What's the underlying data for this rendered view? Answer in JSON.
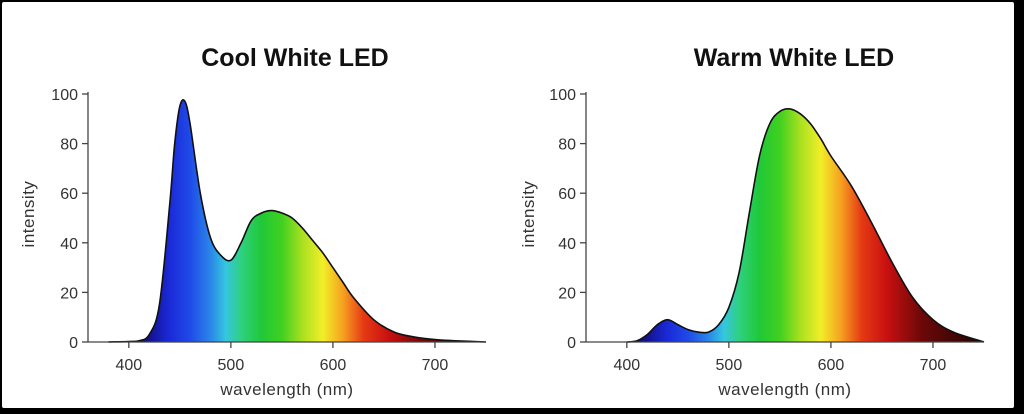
{
  "chart_data": [
    {
      "type": "area",
      "title": "Cool White LED",
      "xlabel": "wavelength (nm)",
      "ylabel": "intensity",
      "xlim": [
        360,
        750
      ],
      "ylim": [
        0,
        100
      ],
      "xticks": [
        "400",
        "500",
        "600",
        "700"
      ],
      "yticks": [
        "0",
        "20",
        "40",
        "60",
        "80",
        "100"
      ],
      "grid": false,
      "fill": "visible spectrum gradient",
      "x": [
        380,
        400,
        410,
        420,
        430,
        440,
        445,
        450,
        455,
        460,
        470,
        480,
        490,
        500,
        510,
        520,
        530,
        540,
        550,
        560,
        570,
        580,
        590,
        600,
        610,
        620,
        640,
        660,
        680,
        700,
        720,
        750
      ],
      "y": [
        0,
        0.2,
        0.5,
        3,
        15,
        55,
        80,
        95,
        97,
        88,
        60,
        42,
        35,
        33,
        40,
        49,
        52,
        53,
        52,
        50,
        46,
        41,
        36,
        30,
        24,
        18,
        9,
        4,
        2,
        1,
        0.5,
        0
      ]
    },
    {
      "type": "area",
      "title": "Warm White LED",
      "xlabel": "wavelength (nm)",
      "ylabel": "intensity",
      "xlim": [
        360,
        750
      ],
      "ylim": [
        0,
        100
      ],
      "xticks": [
        "400",
        "500",
        "600",
        "700"
      ],
      "yticks": [
        "0",
        "20",
        "40",
        "60",
        "80",
        "100"
      ],
      "grid": false,
      "fill": "visible spectrum gradient",
      "x": [
        400,
        410,
        420,
        430,
        440,
        450,
        460,
        470,
        480,
        490,
        500,
        510,
        520,
        530,
        540,
        550,
        560,
        570,
        580,
        590,
        600,
        620,
        640,
        660,
        680,
        700,
        720,
        750
      ],
      "y": [
        0,
        0.5,
        3,
        7,
        9,
        7,
        5,
        4,
        4,
        7,
        14,
        28,
        52,
        75,
        88,
        93,
        94,
        92,
        88,
        82,
        75,
        63,
        48,
        32,
        18,
        9,
        4,
        0
      ]
    }
  ]
}
